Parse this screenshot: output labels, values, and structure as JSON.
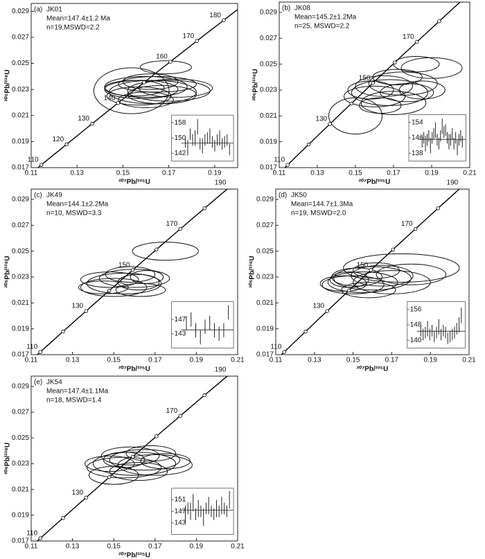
{
  "chart_data": [
    {
      "type": "concordia",
      "panel": "(a)",
      "sample": "JK01",
      "mean_text": "Mean=147.4±1.2 Ma",
      "stats_text": "n=19,MSWD=2.2",
      "x_label": "²⁰⁷Pb/²³⁵U",
      "y_label": "²⁰⁶Pb/²³⁸U",
      "xlim": [
        0.11,
        0.2
      ],
      "ylim": [
        0.017,
        0.0296
      ],
      "xticks": [
        0.11,
        0.13,
        0.15,
        0.17,
        0.19
      ],
      "yticks": [
        0.017,
        0.019,
        0.021,
        0.023,
        0.025,
        0.027,
        0.029
      ],
      "concordia_ages": [
        100,
        110,
        120,
        130,
        140,
        150,
        160,
        170,
        180,
        190,
        200
      ],
      "age_labels": [
        110,
        120,
        130,
        140,
        160,
        170,
        180
      ],
      "ellipses": [
        [
          0.1537,
          0.0229,
          0.0164,
          0.00176
        ],
        [
          0.1687,
          0.0247,
          0.0112,
          0.0005
        ],
        [
          0.16,
          0.0232,
          0.018,
          0.0008
        ],
        [
          0.163,
          0.0228,
          0.019,
          0.0009
        ],
        [
          0.158,
          0.023,
          0.016,
          0.0007
        ],
        [
          0.165,
          0.0234,
          0.017,
          0.0006
        ],
        [
          0.157,
          0.0225,
          0.014,
          0.0007
        ],
        [
          0.17,
          0.0229,
          0.018,
          0.0008
        ],
        [
          0.162,
          0.0236,
          0.012,
          0.0006
        ],
        [
          0.155,
          0.0231,
          0.013,
          0.0006
        ],
        [
          0.167,
          0.0226,
          0.015,
          0.0007
        ],
        [
          0.16,
          0.0222,
          0.012,
          0.0006
        ],
        [
          0.173,
          0.0231,
          0.016,
          0.0007
        ]
      ],
      "inset": {
        "ylim": [
          138,
          162
        ],
        "yticks": [
          142,
          150,
          158
        ],
        "mean": 147.4,
        "values": [
          148,
          145,
          152,
          149,
          150,
          156,
          147,
          146,
          149,
          150,
          151,
          148,
          146,
          149,
          150,
          147,
          148,
          149,
          144
        ],
        "errors": [
          3,
          4,
          3,
          3,
          4,
          4,
          3,
          4,
          3,
          3,
          4,
          3,
          3,
          3,
          4,
          3,
          3,
          3,
          3
        ]
      }
    },
    {
      "type": "concordia",
      "panel": "(b)",
      "sample": "JK08",
      "mean_text": "Mean=145.2±1.2Ma",
      "stats_text": "n=25, MSWD=2.2",
      "x_label": "²⁰⁷Pb/²³⁵U",
      "y_label": "²⁰⁶Pb/²³⁸U",
      "xlim": [
        0.11,
        0.21
      ],
      "ylim": [
        0.017,
        0.0298
      ],
      "xticks": [
        0.11,
        0.13,
        0.15,
        0.17,
        0.19,
        0.21
      ],
      "yticks": [
        0.017,
        0.019,
        0.021,
        0.023,
        0.025,
        0.027,
        0.029
      ],
      "concordia_ages": [
        100,
        110,
        120,
        130,
        140,
        150,
        160,
        170,
        180,
        190,
        200
      ],
      "age_labels": [
        110,
        130,
        150,
        170,
        190
      ],
      "ellipses": [
        [
          0.168,
          0.0228,
          0.02,
          0.001
        ],
        [
          0.175,
          0.0235,
          0.018,
          0.0009
        ],
        [
          0.16,
          0.0225,
          0.016,
          0.0008
        ],
        [
          0.15,
          0.021,
          0.014,
          0.0014
        ],
        [
          0.19,
          0.0247,
          0.016,
          0.0008
        ],
        [
          0.182,
          0.025,
          0.012,
          0.0006
        ],
        [
          0.165,
          0.0233,
          0.015,
          0.0008
        ],
        [
          0.17,
          0.022,
          0.017,
          0.0009
        ],
        [
          0.158,
          0.023,
          0.012,
          0.0007
        ],
        [
          0.177,
          0.0228,
          0.014,
          0.0007
        ],
        [
          0.163,
          0.0218,
          0.011,
          0.0006
        ],
        [
          0.185,
          0.023,
          0.012,
          0.0007
        ],
        [
          0.172,
          0.024,
          0.013,
          0.0006
        ]
      ],
      "inset": {
        "ylim": [
          134,
          158
        ],
        "yticks": [
          138,
          146,
          154
        ],
        "mean": 145.2,
        "values": [
          144,
          146,
          143,
          145,
          147,
          142,
          146,
          148,
          150,
          145,
          143,
          147,
          152,
          149,
          150,
          146,
          144,
          145,
          148,
          143,
          146,
          141,
          145,
          147,
          144
        ],
        "errors": [
          3,
          3,
          4,
          3,
          3,
          4,
          3,
          3,
          4,
          3,
          3,
          3,
          4,
          3,
          3,
          3,
          4,
          3,
          3,
          3,
          3,
          4,
          3,
          3,
          3
        ]
      }
    },
    {
      "type": "concordia",
      "panel": "(c)",
      "sample": "JK49",
      "mean_text": "Mean=144.1±2.2Ma",
      "stats_text": "n=10, MSWD=3.3",
      "x_label": "²⁰⁷Pb/²³⁵U",
      "y_label": "²⁰⁶Pb/²³⁸U",
      "xlim": [
        0.11,
        0.21
      ],
      "ylim": [
        0.017,
        0.0298
      ],
      "xticks": [
        0.11,
        0.13,
        0.15,
        0.17,
        0.19,
        0.21
      ],
      "yticks": [
        0.017,
        0.019,
        0.021,
        0.023,
        0.025,
        0.027,
        0.029
      ],
      "concordia_ages": [
        100,
        110,
        120,
        130,
        140,
        150,
        160,
        170,
        180,
        190,
        200
      ],
      "age_labels": [
        110,
        130,
        150,
        170,
        190
      ],
      "ellipses": [
        [
          0.175,
          0.025,
          0.016,
          0.0007
        ],
        [
          0.155,
          0.0225,
          0.018,
          0.0008
        ],
        [
          0.15,
          0.0222,
          0.016,
          0.0007
        ],
        [
          0.16,
          0.0229,
          0.017,
          0.0007
        ],
        [
          0.148,
          0.0228,
          0.014,
          0.0006
        ],
        [
          0.163,
          0.022,
          0.012,
          0.0005
        ],
        [
          0.158,
          0.0232,
          0.012,
          0.0006
        ],
        [
          0.162,
          0.0226,
          0.01,
          0.0006
        ],
        [
          0.145,
          0.0222,
          0.012,
          0.0005
        ],
        [
          0.166,
          0.023,
          0.008,
          0.0005
        ]
      ],
      "inset": {
        "ylim": [
          139,
          152
        ],
        "yticks": [
          143,
          147
        ],
        "mean": 144.1,
        "values": [
          146,
          147,
          144,
          142,
          145,
          146,
          144,
          143,
          144,
          149
        ],
        "errors": [
          2,
          2,
          2,
          2,
          2,
          2,
          2,
          2,
          2,
          2
        ]
      }
    },
    {
      "type": "concordia",
      "panel": "(d)",
      "sample": "JK50",
      "mean_text": "Mean=144.7±1.3Ma",
      "stats_text": "n=19, MSWD=2.0",
      "x_label": "²⁰⁷Pb/²³⁵U",
      "y_label": "²⁰⁶Pb/²³⁸U",
      "xlim": [
        0.11,
        0.21
      ],
      "ylim": [
        0.017,
        0.0298
      ],
      "xticks": [
        0.11,
        0.13,
        0.15,
        0.17,
        0.19,
        0.21
      ],
      "yticks": [
        0.017,
        0.019,
        0.021,
        0.023,
        0.025,
        0.027,
        0.029
      ],
      "concordia_ages": [
        100,
        110,
        120,
        130,
        140,
        150,
        160,
        170,
        180,
        190,
        200
      ],
      "age_labels": [
        110,
        130,
        150,
        170,
        190
      ],
      "ellipses": [
        [
          0.175,
          0.0237,
          0.03,
          0.0011
        ],
        [
          0.155,
          0.0226,
          0.018,
          0.0008
        ],
        [
          0.15,
          0.0224,
          0.016,
          0.0007
        ],
        [
          0.16,
          0.0229,
          0.02,
          0.0009
        ],
        [
          0.145,
          0.0225,
          0.012,
          0.0006
        ],
        [
          0.165,
          0.0231,
          0.016,
          0.0008
        ],
        [
          0.152,
          0.023,
          0.013,
          0.0007
        ],
        [
          0.17,
          0.0226,
          0.02,
          0.0009
        ],
        [
          0.158,
          0.022,
          0.014,
          0.0006
        ],
        [
          0.148,
          0.0228,
          0.01,
          0.0006
        ],
        [
          0.18,
          0.0232,
          0.018,
          0.0008
        ],
        [
          0.162,
          0.0235,
          0.012,
          0.0006
        ]
      ],
      "inset": {
        "ylim": [
          136,
          160
        ],
        "yticks": [
          140,
          148,
          156
        ],
        "mean": 144.7,
        "values": [
          145,
          143,
          144,
          146,
          143,
          145,
          142,
          144,
          147,
          143,
          145,
          144,
          141,
          142,
          143,
          144,
          146,
          148,
          153
        ],
        "errors": [
          3,
          3,
          3,
          4,
          3,
          3,
          3,
          3,
          4,
          3,
          3,
          3,
          3,
          3,
          3,
          3,
          3,
          4,
          4
        ]
      }
    },
    {
      "type": "concordia",
      "panel": "(e)",
      "sample": "JK54",
      "mean_text": "Mean=147.4±1.1Ma",
      "stats_text": "n=18, MSWD=1.4",
      "x_label": "²⁰⁷Pb/²³⁵U",
      "y_label": "²⁰⁶Pb/²³⁸U",
      "xlim": [
        0.11,
        0.21
      ],
      "ylim": [
        0.017,
        0.0298
      ],
      "xticks": [
        0.11,
        0.13,
        0.15,
        0.17,
        0.19,
        0.21
      ],
      "yticks": [
        0.017,
        0.019,
        0.021,
        0.023,
        0.025,
        0.027,
        0.029
      ],
      "concordia_ages": [
        100,
        110,
        120,
        130,
        140,
        150,
        160,
        170,
        180,
        190,
        200
      ],
      "age_labels": [
        110,
        130,
        170,
        190
      ],
      "ellipses": [
        [
          0.16,
          0.023,
          0.02,
          0.0009
        ],
        [
          0.155,
          0.0227,
          0.018,
          0.0008
        ],
        [
          0.165,
          0.0233,
          0.017,
          0.0008
        ],
        [
          0.15,
          0.0221,
          0.012,
          0.0007
        ],
        [
          0.158,
          0.0236,
          0.014,
          0.0007
        ],
        [
          0.17,
          0.0229,
          0.018,
          0.0008
        ],
        [
          0.148,
          0.023,
          0.012,
          0.0006
        ],
        [
          0.162,
          0.0224,
          0.014,
          0.0007
        ],
        [
          0.168,
          0.0238,
          0.012,
          0.0006
        ],
        [
          0.175,
          0.0232,
          0.012,
          0.0006
        ],
        [
          0.155,
          0.0233,
          0.01,
          0.0006
        ]
      ],
      "inset": {
        "ylim": [
          139,
          155
        ],
        "yticks": [
          143,
          147,
          151
        ],
        "mean": 147.4,
        "values": [
          146,
          148,
          147,
          150,
          146,
          148,
          147,
          145,
          148,
          149,
          147,
          146,
          148,
          147,
          149,
          148,
          147,
          151
        ],
        "errors": [
          3,
          2,
          3,
          3,
          2,
          3,
          2,
          3,
          2,
          3,
          2,
          2,
          3,
          2,
          3,
          2,
          2,
          3
        ]
      }
    }
  ]
}
